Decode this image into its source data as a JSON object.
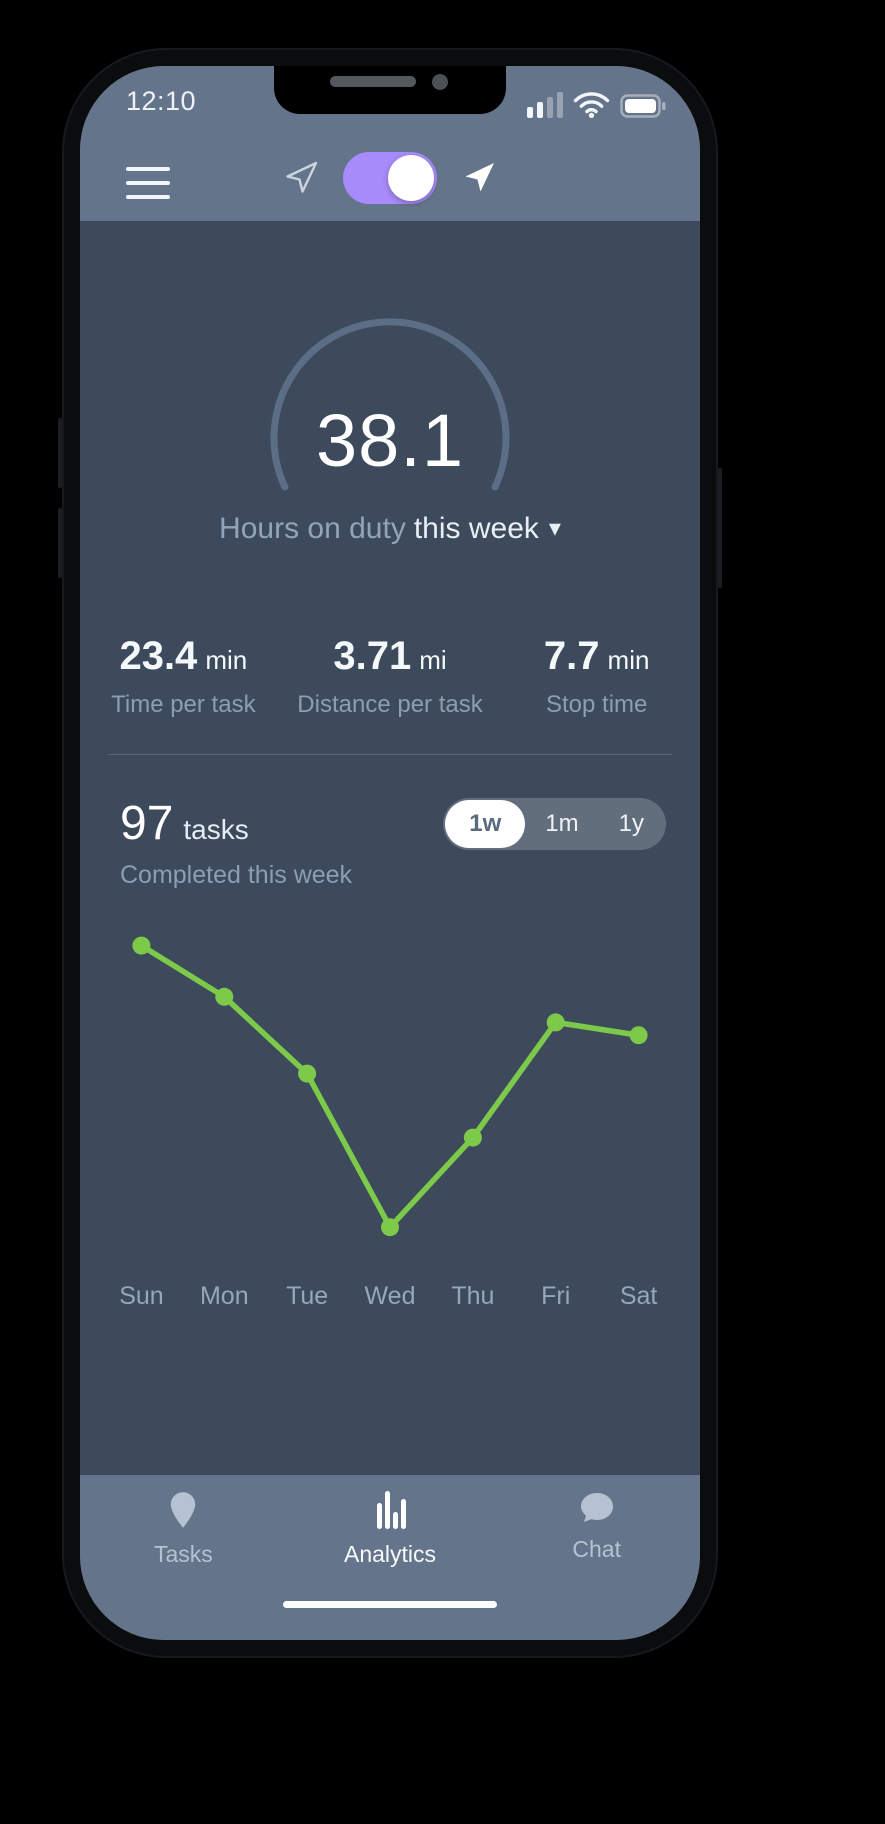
{
  "status_bar": {
    "time": "12:10",
    "icons": [
      "cellular-signal-bars",
      "wifi",
      "battery-full"
    ]
  },
  "header": {
    "menu_icon": "hamburger-menu",
    "location_toggle": {
      "state": "on",
      "left_icon": "nav-arrow-outline",
      "right_icon": "nav-arrow-filled",
      "accent_color": "#a78bfa"
    }
  },
  "gauge": {
    "value": "38.1",
    "label_muted": "Hours on duty",
    "label_bright": "this week",
    "caret": "▾",
    "arc_color": "#5c6e85"
  },
  "stats": [
    {
      "value": "23.4",
      "unit": "min",
      "label": "Time per task"
    },
    {
      "value": "3.71",
      "unit": "mi",
      "label": "Distance per task"
    },
    {
      "value": "7.7",
      "unit": "min",
      "label": "Stop time"
    }
  ],
  "tasks_summary": {
    "count": "97",
    "count_unit": "tasks",
    "subtitle": "Completed this week"
  },
  "range_selector": {
    "options": [
      {
        "label": "1w",
        "selected": true
      },
      {
        "label": "1m",
        "selected": false
      },
      {
        "label": "1y",
        "selected": false
      }
    ]
  },
  "chart_data": {
    "type": "line",
    "title": "Tasks completed per day this week",
    "categories": [
      "Sun",
      "Mon",
      "Tue",
      "Wed",
      "Thu",
      "Fri",
      "Sat"
    ],
    "values": [
      23,
      19,
      13,
      1,
      8,
      17,
      16
    ],
    "xlabel": "",
    "ylabel": "tasks (estimated from plot, no axis shown)",
    "ylim": [
      0,
      25
    ],
    "grid": false,
    "legend": "none",
    "line_color": "#7dc94a",
    "marker": "circle"
  },
  "bottom_nav": {
    "items": [
      {
        "label": "Tasks",
        "icon": "map-pin",
        "active": false
      },
      {
        "label": "Analytics",
        "icon": "equalizer-bars",
        "active": true
      },
      {
        "label": "Chat",
        "icon": "speech-bubble",
        "active": false
      }
    ]
  },
  "colors": {
    "background": "#3d4a5c",
    "bar_background": "#64748a",
    "accent_purple": "#a78bfa",
    "chart_green": "#7dc94a",
    "text_bright": "#eef2f7",
    "text_muted": "#8c9eb4",
    "gauge_arc": "#5c6e85"
  }
}
